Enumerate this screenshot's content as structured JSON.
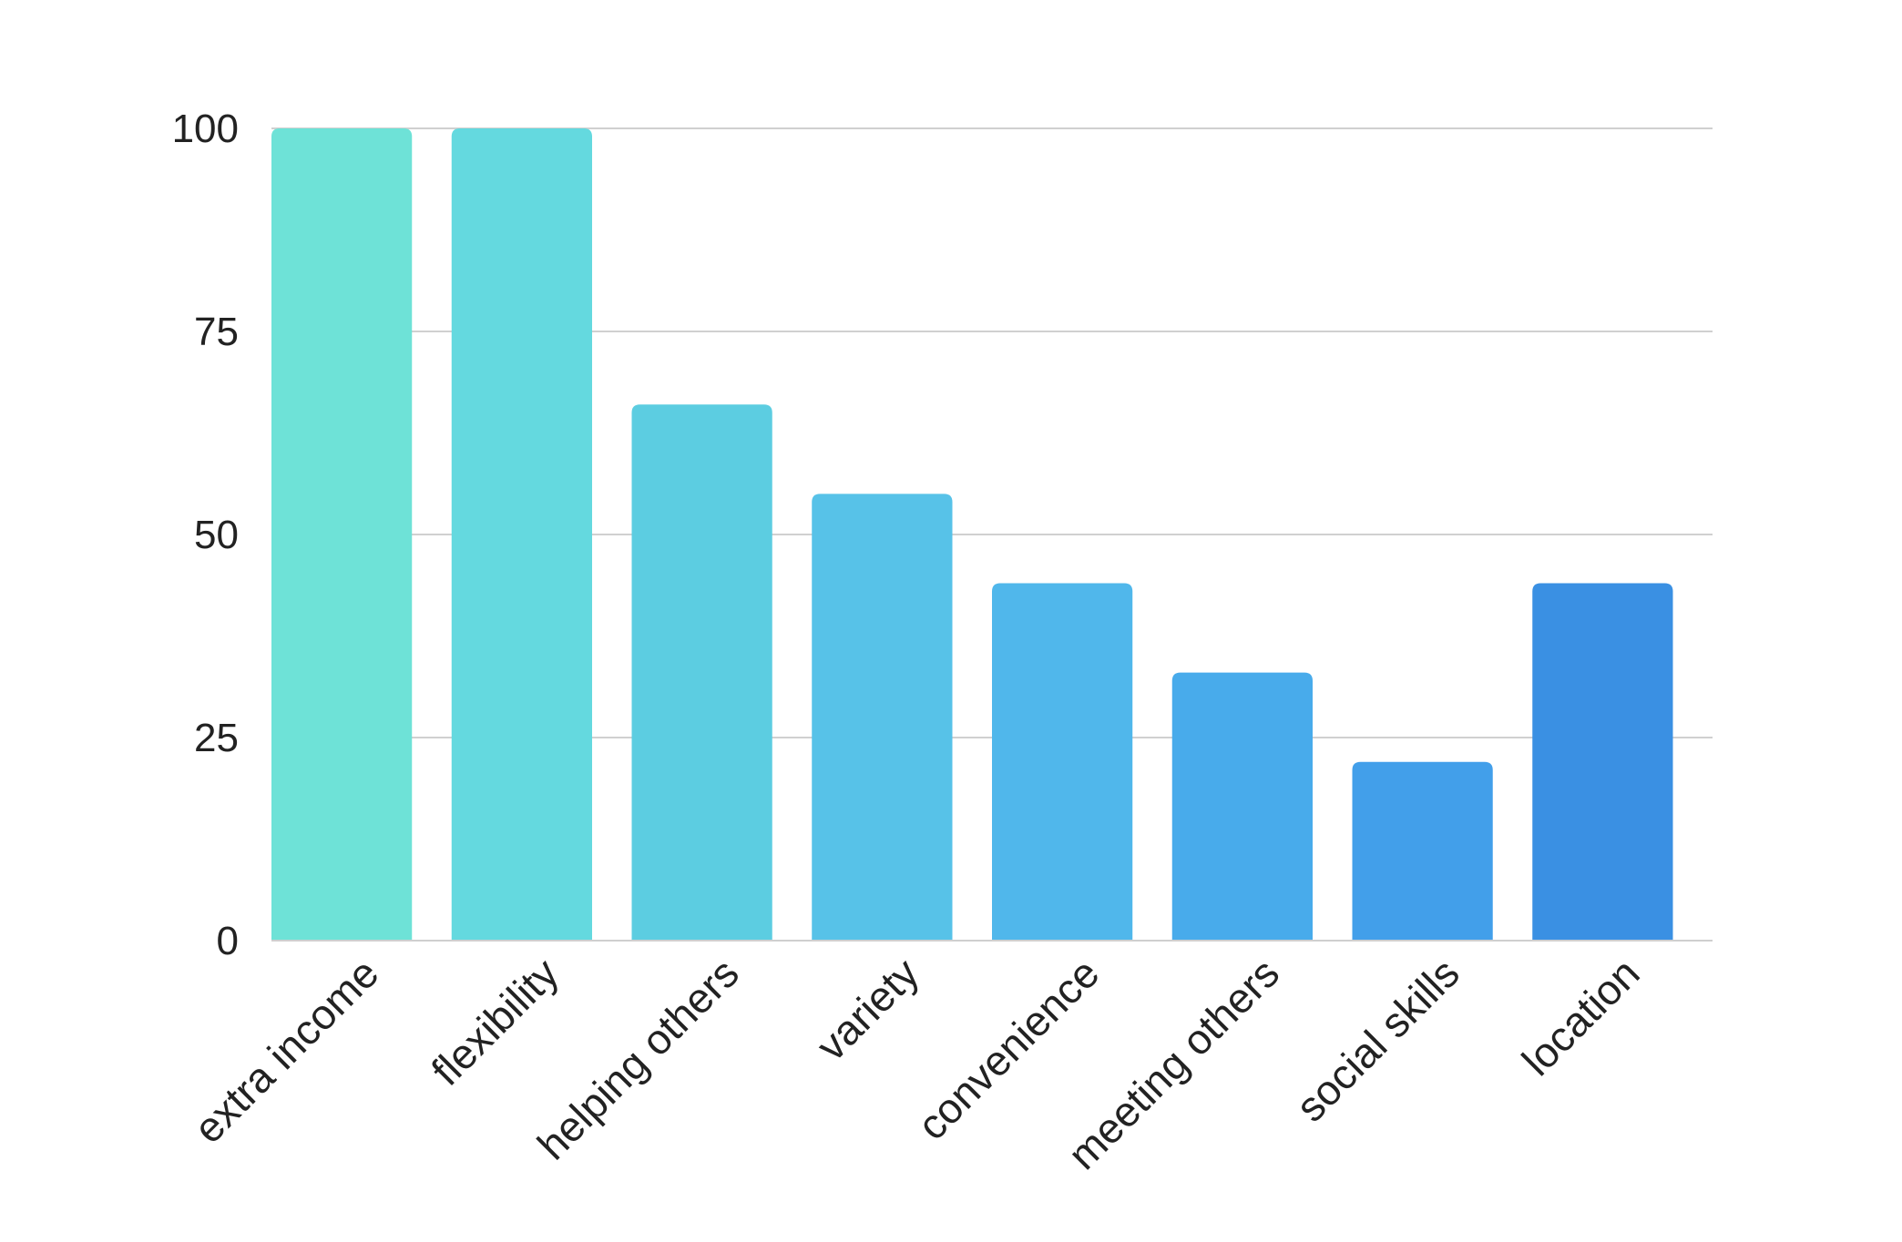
{
  "chart_data": {
    "type": "bar",
    "title": "",
    "xlabel": "",
    "ylabel": "",
    "categories": [
      "extra income",
      "flexibility",
      "helping others",
      "variety",
      "convenience",
      "meeting others",
      "social skills",
      "location"
    ],
    "values": [
      100,
      100,
      66,
      55,
      44,
      33,
      22,
      44
    ],
    "colors": [
      "#6ee2d7",
      "#64d9df",
      "#5ccde1",
      "#57c2e8",
      "#50b7eb",
      "#48abeb",
      "#429fea",
      "#3a90e3"
    ],
    "ylim": [
      0,
      100
    ],
    "yticks": [
      0,
      25,
      50,
      75,
      100
    ],
    "grid": true,
    "legend": "none"
  }
}
